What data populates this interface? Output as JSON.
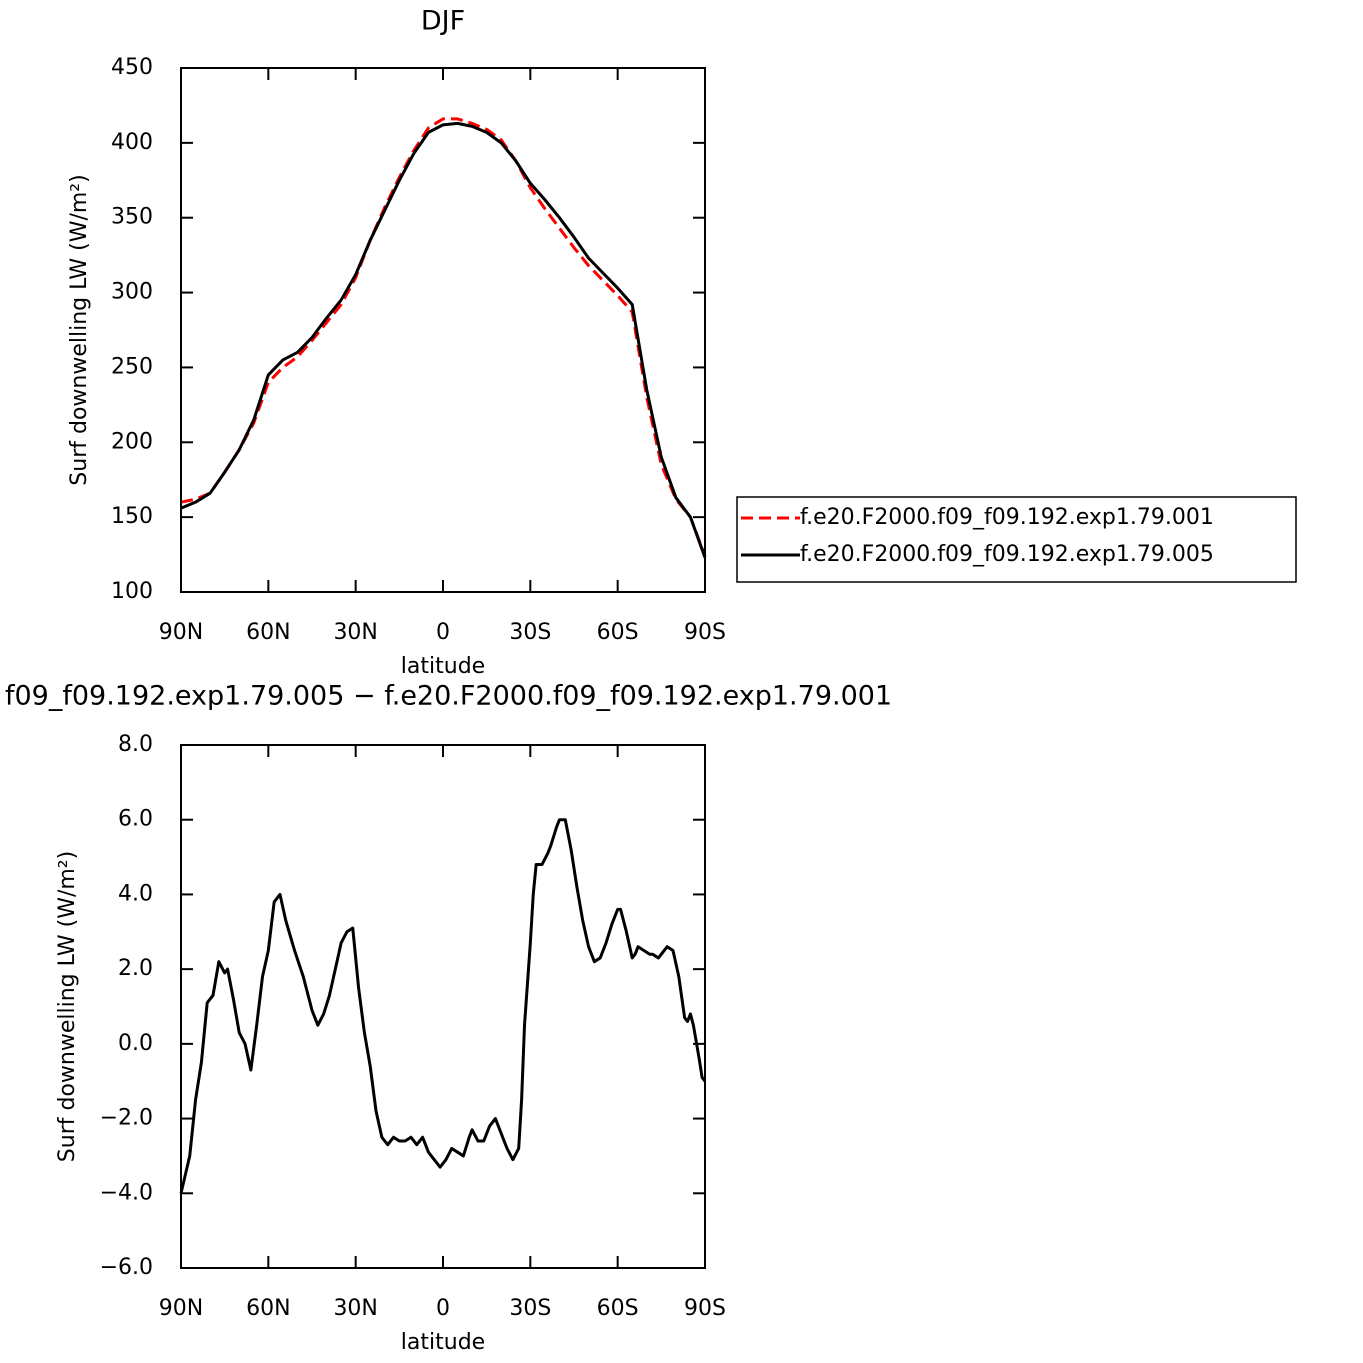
{
  "chart_data": [
    {
      "type": "line",
      "title": "DJF",
      "x_label": "latitude",
      "y_label": "Surf downwelling LW (W/m²)",
      "x": [
        90,
        85,
        80,
        75,
        70,
        65,
        60,
        55,
        50,
        45,
        40,
        35,
        30,
        25,
        20,
        15,
        10,
        5,
        0,
        -5,
        -10,
        -15,
        -20,
        -25,
        -30,
        -35,
        -40,
        -45,
        -50,
        -55,
        -60,
        -65,
        -70,
        -75,
        -80,
        -85,
        -90
      ],
      "series": [
        {
          "name": "f.e20.F2000.f09_f09.192.exp1.79.001",
          "color": "#ff0000",
          "linestyle": "dashed",
          "values": [
            160,
            162,
            166,
            180,
            195,
            213,
            240,
            250,
            257,
            268,
            280,
            292,
            310,
            335,
            357,
            377,
            395,
            410,
            416,
            416,
            413,
            409,
            402,
            388,
            370,
            356,
            343,
            330,
            318,
            308,
            298,
            287,
            230,
            185,
            162,
            150,
            124
          ]
        },
        {
          "name": "f.e20.F2000.f09_f09.192.exp1.79.005",
          "color": "#000000",
          "linestyle": "solid",
          "values": [
            156,
            160,
            166,
            180,
            195,
            215,
            245,
            255,
            260,
            270,
            283,
            295,
            312,
            335,
            355,
            375,
            393,
            407,
            412,
            413,
            411,
            407,
            400,
            388,
            373,
            362,
            350,
            337,
            323,
            313,
            303,
            292,
            235,
            190,
            163,
            150,
            123
          ]
        }
      ],
      "xlim": [
        90,
        -90
      ],
      "xticks": [
        {
          "value": 90,
          "label": "90N"
        },
        {
          "value": 60,
          "label": "60N"
        },
        {
          "value": 30,
          "label": "30N"
        },
        0,
        {
          "value": -30,
          "label": "30S"
        },
        {
          "value": -60,
          "label": "60S"
        },
        {
          "value": -90,
          "label": "90S"
        }
      ],
      "ylim": [
        100,
        450
      ],
      "yticks": [
        100,
        150,
        200,
        250,
        300,
        350,
        400,
        450
      ],
      "legend": "right"
    },
    {
      "type": "line",
      "title": "f09_f09.192.exp1.79.005 − f.e20.F2000.f09_f09.192.exp1.79.001",
      "x_label": "latitude",
      "y_label": "Surf downwelling LW (W/m²)",
      "x": [
        90,
        87,
        85,
        83,
        81,
        79,
        77,
        75,
        74,
        72,
        70,
        68,
        66,
        64,
        62,
        60,
        58,
        56,
        54,
        51,
        48,
        45,
        43,
        41,
        39,
        37,
        35,
        33,
        31,
        29,
        27,
        25,
        23,
        21,
        19,
        17,
        15,
        13,
        11,
        9,
        7,
        5,
        3,
        1,
        -1,
        -3,
        -5,
        -7,
        -9,
        -10,
        -12,
        -14,
        -16,
        -18,
        -20,
        -22,
        -24,
        -26,
        -27,
        -28,
        -30,
        -31,
        -32,
        -34,
        -36,
        -37,
        -39,
        -40,
        -42,
        -44,
        -46,
        -48,
        -50,
        -52,
        -54,
        -56,
        -58,
        -60,
        -61,
        -63,
        -65,
        -66,
        -67,
        -69,
        -71,
        -72,
        -74,
        -76,
        -77,
        -79,
        -81,
        -83,
        -84,
        -85,
        -86,
        -88,
        -89,
        -90
      ],
      "series": [
        {
          "color": "#000000",
          "linestyle": "solid",
          "values": [
            -4.0,
            -3.0,
            -1.5,
            -0.5,
            1.1,
            1.3,
            2.2,
            1.9,
            2.0,
            1.2,
            0.3,
            0.0,
            -0.7,
            0.5,
            1.8,
            2.5,
            3.8,
            4.0,
            3.3,
            2.5,
            1.8,
            0.9,
            0.5,
            0.8,
            1.3,
            2.0,
            2.7,
            3.0,
            3.1,
            1.5,
            0.3,
            -0.6,
            -1.8,
            -2.5,
            -2.7,
            -2.5,
            -2.6,
            -2.6,
            -2.5,
            -2.7,
            -2.5,
            -2.9,
            -3.1,
            -3.3,
            -3.1,
            -2.8,
            -2.9,
            -3.0,
            -2.5,
            -2.3,
            -2.6,
            -2.6,
            -2.2,
            -2.0,
            -2.4,
            -2.8,
            -3.1,
            -2.8,
            -1.5,
            0.5,
            2.7,
            4.0,
            4.8,
            4.8,
            5.1,
            5.3,
            5.8,
            6.0,
            6.0,
            5.2,
            4.2,
            3.3,
            2.6,
            2.2,
            2.3,
            2.7,
            3.2,
            3.6,
            3.6,
            3.0,
            2.3,
            2.4,
            2.6,
            2.5,
            2.4,
            2.4,
            2.3,
            2.5,
            2.6,
            2.5,
            1.8,
            0.7,
            0.6,
            0.8,
            0.5,
            -0.4,
            -0.9,
            -1.0
          ]
        }
      ],
      "xlim": [
        90,
        -90
      ],
      "xticks": [
        {
          "value": 90,
          "label": "90N"
        },
        {
          "value": 60,
          "label": "60N"
        },
        {
          "value": 30,
          "label": "30N"
        },
        0,
        {
          "value": -30,
          "label": "30S"
        },
        {
          "value": -60,
          "label": "60S"
        },
        {
          "value": -90,
          "label": "90S"
        }
      ],
      "ylim": [
        -6,
        8
      ],
      "yticks": [
        {
          "value": -6,
          "label": "−6.0"
        },
        {
          "value": -4,
          "label": "−4.0"
        },
        {
          "value": -2,
          "label": "−2.0"
        },
        {
          "value": 0,
          "label": "0.0"
        },
        {
          "value": 2,
          "label": "2.0"
        },
        {
          "value": 4,
          "label": "4.0"
        },
        {
          "value": 6,
          "label": "6.0"
        },
        {
          "value": 8,
          "label": "8.0"
        }
      ]
    }
  ]
}
